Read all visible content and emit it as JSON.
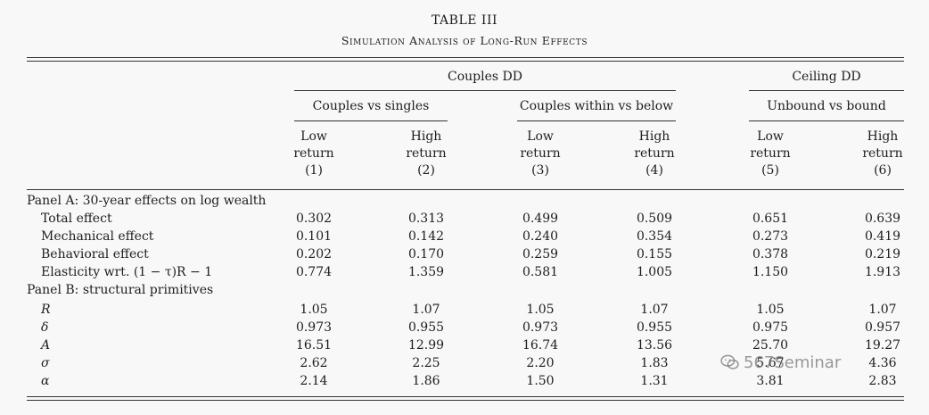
{
  "table": {
    "title": "TABLE III",
    "subtitle": "Simulation Analysis of Long-Run Effects",
    "group_headers": {
      "couples_dd": "Couples DD",
      "ceiling_dd": "Ceiling DD"
    },
    "sub_headers": {
      "couples_vs_singles": "Couples vs singles",
      "couples_within_below": "Couples within vs below",
      "unbound_vs_bound": "Unbound vs bound"
    },
    "columns": [
      {
        "line1": "Low",
        "line2": "return",
        "line3": "(1)"
      },
      {
        "line1": "High",
        "line2": "return",
        "line3": "(2)"
      },
      {
        "line1": "Low",
        "line2": "return",
        "line3": "(3)"
      },
      {
        "line1": "High",
        "line2": "return",
        "line3": "(4)"
      },
      {
        "line1": "Low",
        "line2": "return",
        "line3": "(5)"
      },
      {
        "line1": "High",
        "line2": "return",
        "line3": "(6)"
      }
    ],
    "panel_a": {
      "title": "Panel A: 30-year effects on log wealth",
      "rows": [
        {
          "label": "Total effect",
          "values": [
            "0.302",
            "0.313",
            "0.499",
            "0.509",
            "0.651",
            "0.639"
          ]
        },
        {
          "label": "Mechanical effect",
          "values": [
            "0.101",
            "0.142",
            "0.240",
            "0.354",
            "0.273",
            "0.419"
          ]
        },
        {
          "label": "Behavioral effect",
          "values": [
            "0.202",
            "0.170",
            "0.259",
            "0.155",
            "0.378",
            "0.219"
          ]
        },
        {
          "label": "Elasticity wrt. (1 − τ)R − 1",
          "values": [
            "0.774",
            "1.359",
            "0.581",
            "1.005",
            "1.150",
            "1.913"
          ]
        }
      ]
    },
    "panel_b": {
      "title": "Panel B: structural primitives",
      "rows": [
        {
          "label": "R",
          "values": [
            "1.05",
            "1.07",
            "1.05",
            "1.07",
            "1.05",
            "1.07"
          ]
        },
        {
          "label": "δ",
          "values": [
            "0.973",
            "0.955",
            "0.973",
            "0.955",
            "0.975",
            "0.957"
          ]
        },
        {
          "label": "A",
          "values": [
            "16.51",
            "12.99",
            "16.74",
            "13.56",
            "25.70",
            "19.27"
          ]
        },
        {
          "label": "σ",
          "values": [
            "2.62",
            "2.25",
            "2.20",
            "1.83",
            "5.67",
            "4.36"
          ]
        },
        {
          "label": "α",
          "values": [
            "2.14",
            "1.86",
            "1.50",
            "1.31",
            "3.81",
            "2.83"
          ]
        }
      ]
    }
  },
  "watermark": {
    "text": "567Seminar",
    "icon": "wechat-icon"
  }
}
